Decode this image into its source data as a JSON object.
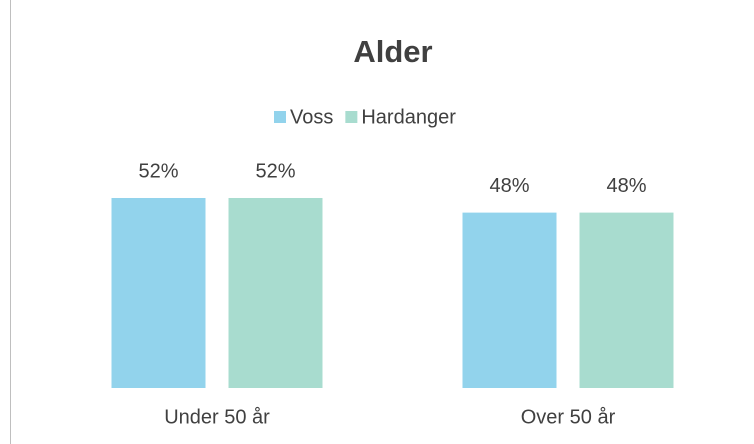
{
  "chart_data": {
    "type": "bar",
    "title": "Alder",
    "categories": [
      "Under 50 år",
      "Over 50 år"
    ],
    "series": [
      {
        "name": "Voss",
        "color": "#92d3ec",
        "values": [
          52,
          48
        ],
        "value_labels": [
          "52%",
          "48%"
        ]
      },
      {
        "name": "Hardanger",
        "color": "#a8dccf",
        "values": [
          52,
          48
        ],
        "value_labels": [
          "52%",
          "48%"
        ]
      }
    ],
    "legend": "top"
  }
}
